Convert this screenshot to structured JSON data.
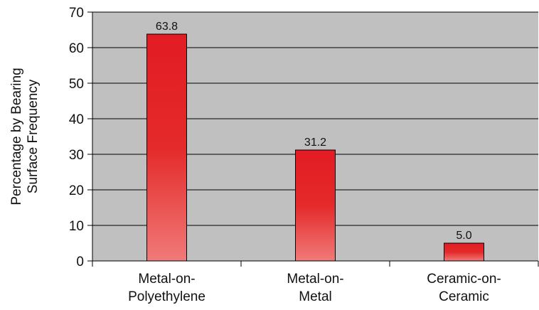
{
  "chart_data": {
    "type": "bar",
    "categories": [
      "Metal-on-Polyethylene",
      "Metal-on-Metal",
      "Ceramic-on-Ceramic"
    ],
    "category_lines": [
      [
        "Metal-on-",
        "Polyethylene"
      ],
      [
        "Metal-on-",
        "Metal"
      ],
      [
        "Ceramic-on-",
        "Ceramic"
      ]
    ],
    "values": [
      63.8,
      31.2,
      5.0
    ],
    "data_labels": [
      "63.8",
      "31.2",
      "5.0"
    ],
    "title": "",
    "xlabel": "",
    "ylabel_lines": [
      "Percentage by Bearing",
      "Surface Frequency"
    ],
    "ylim": [
      0,
      70
    ],
    "yticks": [
      0,
      10,
      20,
      30,
      40,
      50,
      60,
      70
    ],
    "grid": true,
    "legend": "none",
    "colors": {
      "plot_background": "#c0c0c0",
      "gridline": "#000000",
      "bar_top": "#e21c23",
      "bar_bottom": "#f07a78",
      "bar_border": "#000000"
    }
  }
}
